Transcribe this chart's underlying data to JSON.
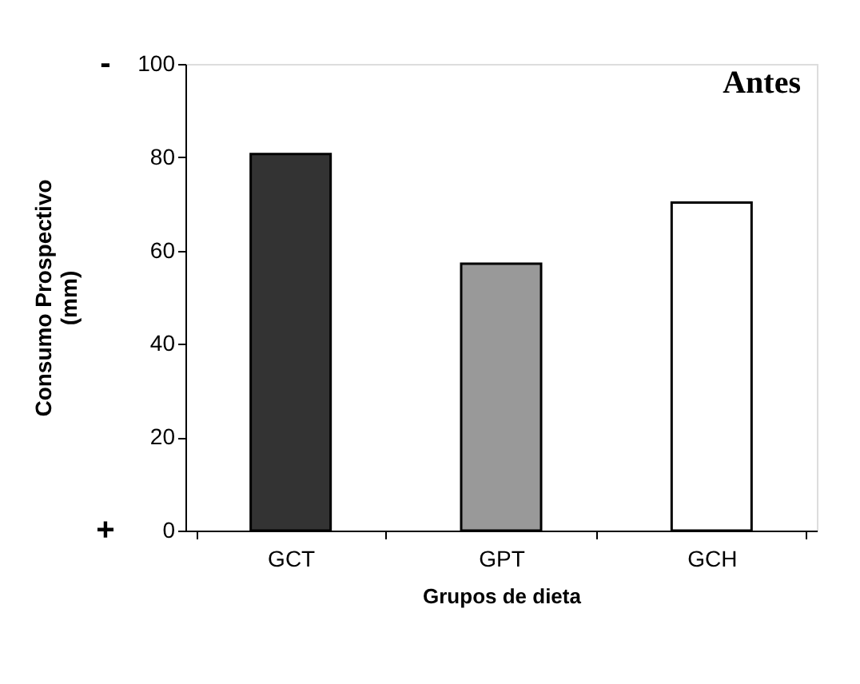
{
  "chart_data": {
    "type": "bar",
    "categories": [
      "GCT",
      "GPT",
      "GCH"
    ],
    "values": [
      80.7,
      57.2,
      70.3
    ],
    "colors": [
      "#333333",
      "#999999",
      "#ffffff"
    ],
    "xlabel": "Grupos de dieta",
    "ylabel": "Consumo Prospectivo (mm)",
    "ylim": [
      0,
      100
    ],
    "yticks": [
      0,
      20,
      40,
      60,
      80,
      100
    ],
    "grid": false,
    "annotations": [
      "Antes",
      "-",
      "+"
    ]
  }
}
